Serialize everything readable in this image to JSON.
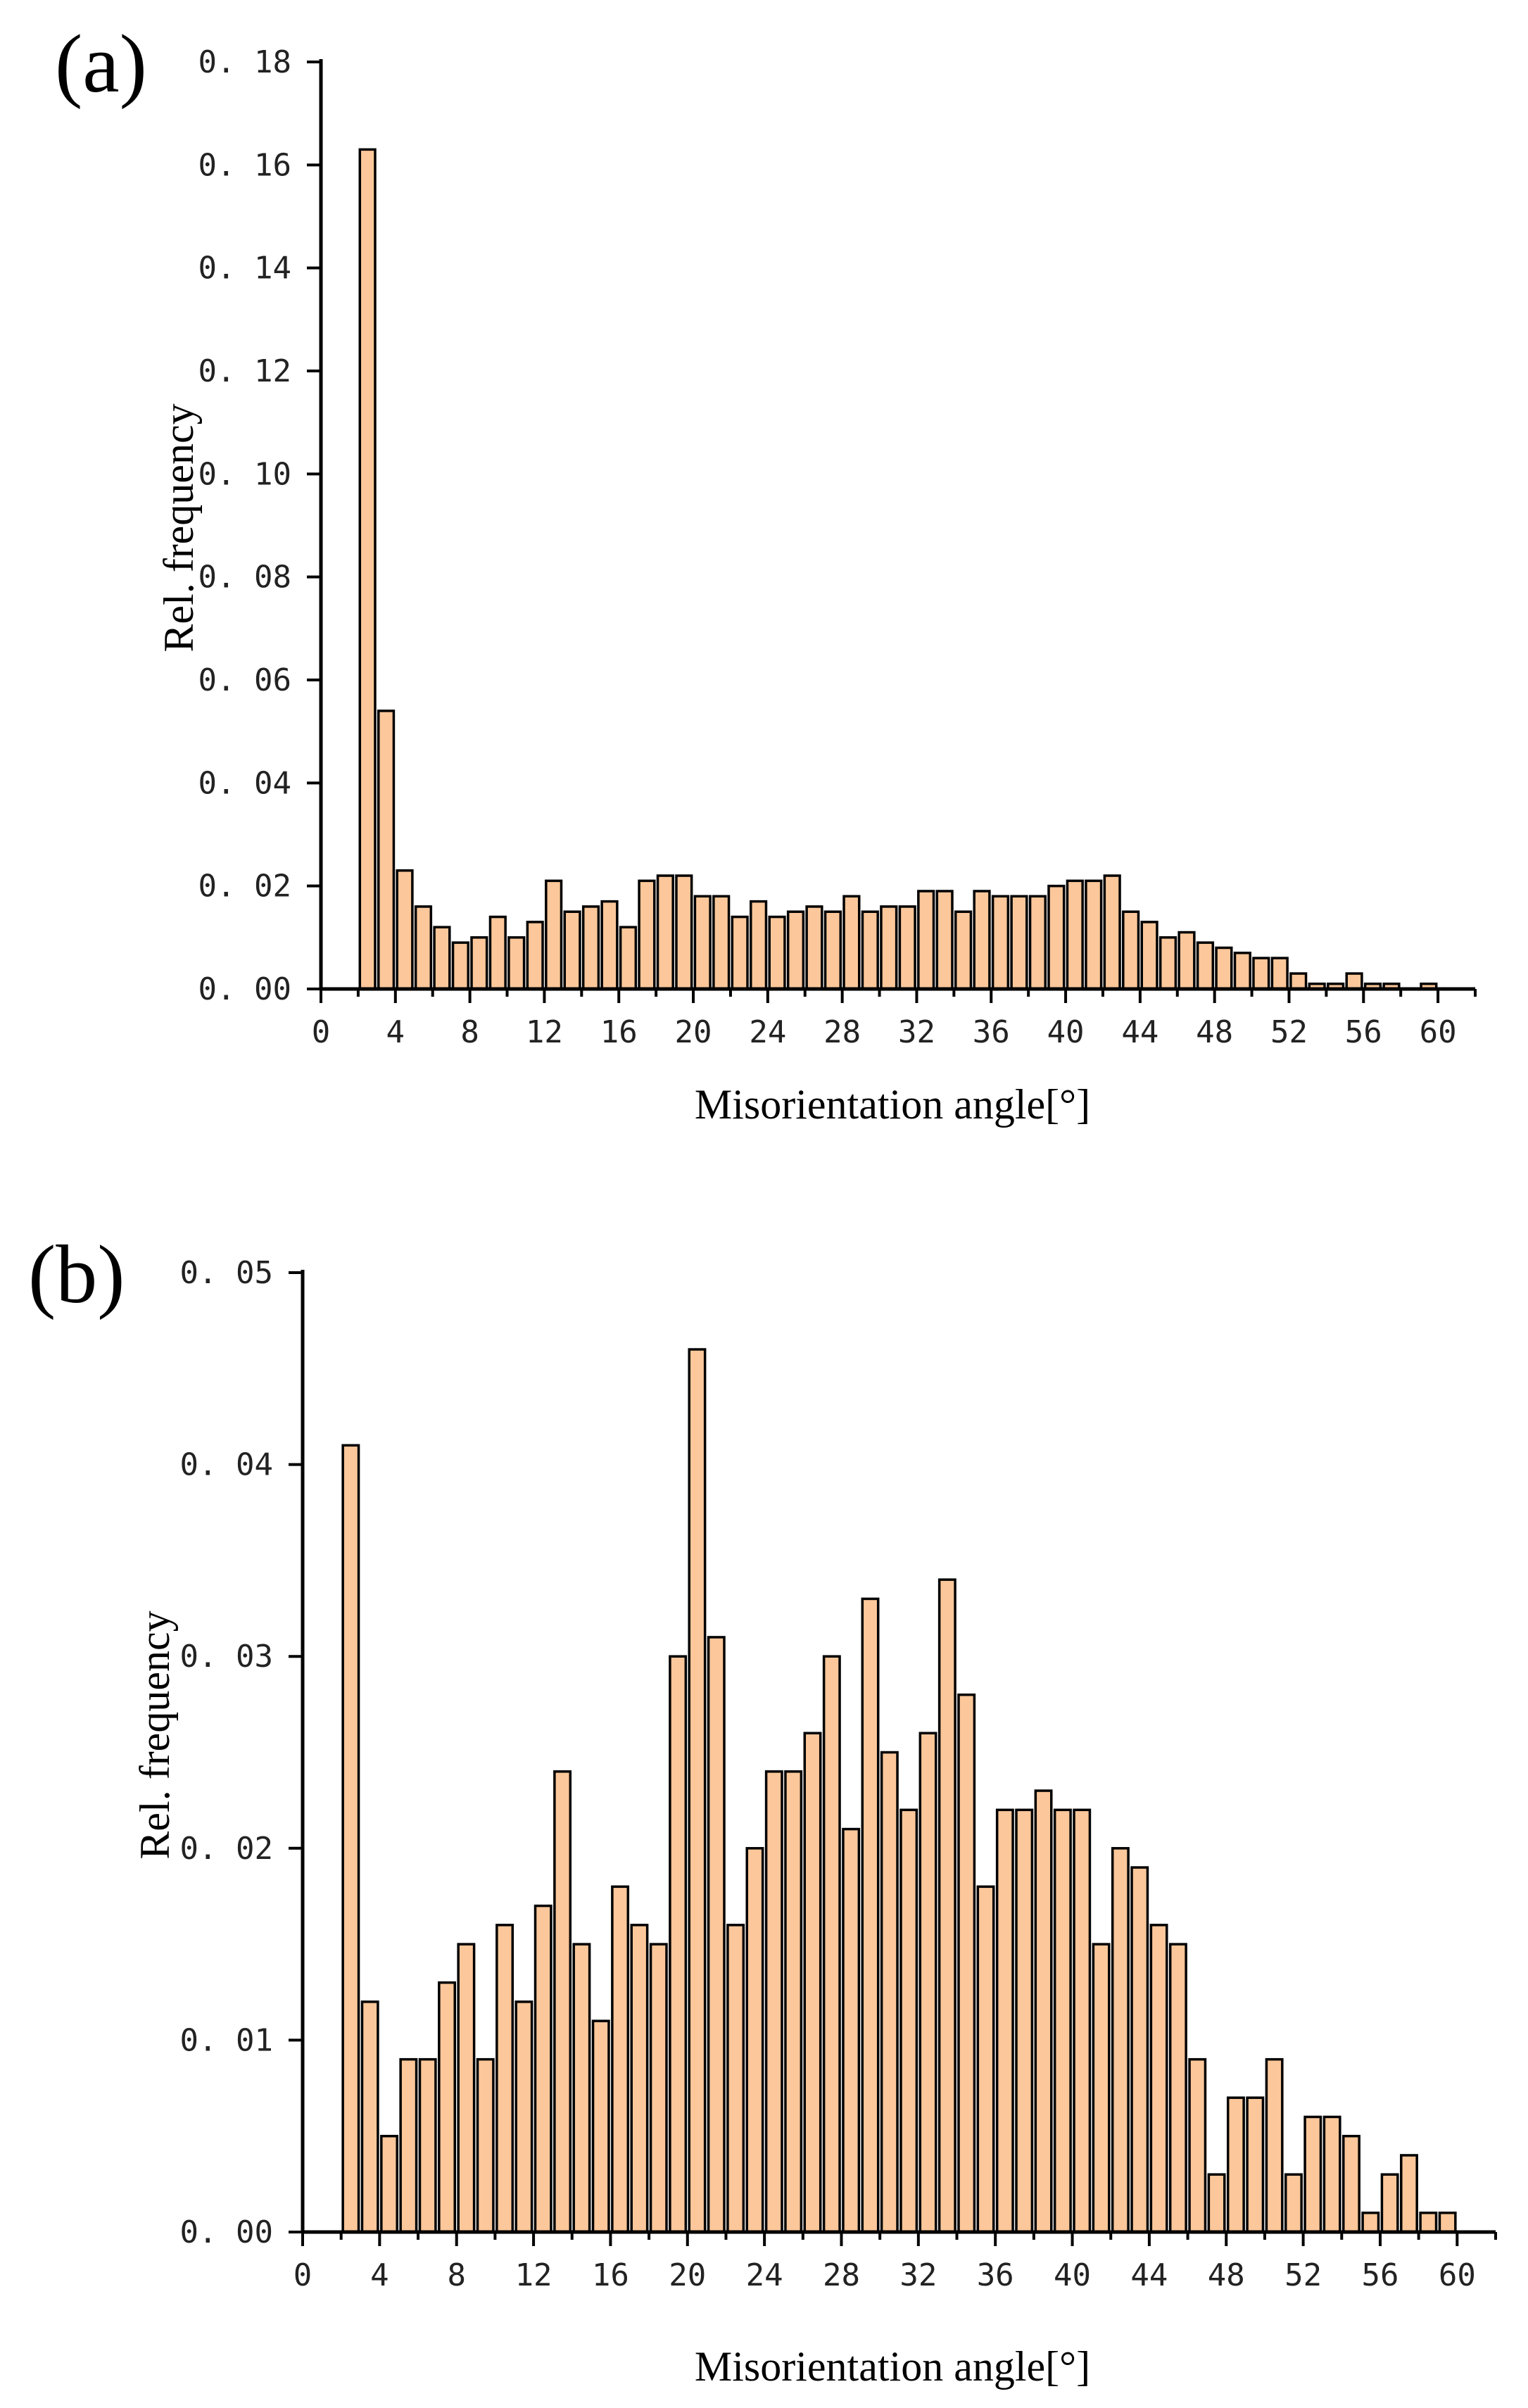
{
  "chart_data": [
    {
      "panel": "(a)",
      "type": "bar",
      "xlabel": "Misorientation angle[°]",
      "ylabel": "Rel. frequency",
      "xlim": [
        0,
        62
      ],
      "ylim": [
        0,
        0.18
      ],
      "xticks": [
        0,
        4,
        8,
        12,
        16,
        20,
        24,
        28,
        32,
        36,
        40,
        44,
        48,
        52,
        56,
        60
      ],
      "yticks": [
        "0.00",
        "0.02",
        "0.04",
        "0.06",
        "0.08",
        "0.10",
        "0.12",
        "0.14",
        "0.16",
        "0.18"
      ],
      "x": [
        2.5,
        3.5,
        4.5,
        5.5,
        6.5,
        7.5,
        8.5,
        9.5,
        10.5,
        11.5,
        12.5,
        13.5,
        14.5,
        15.5,
        16.5,
        17.5,
        18.5,
        19.5,
        20.5,
        21.5,
        22.5,
        23.5,
        24.5,
        25.5,
        26.5,
        27.5,
        28.5,
        29.5,
        30.5,
        31.5,
        32.5,
        33.5,
        34.5,
        35.5,
        36.5,
        37.5,
        38.5,
        39.5,
        40.5,
        41.5,
        42.5,
        43.5,
        44.5,
        45.5,
        46.5,
        47.5,
        48.5,
        49.5,
        50.5,
        51.5,
        52.5,
        53.5,
        54.5,
        55.5,
        56.5,
        57.5,
        58.5,
        59.5
      ],
      "values": [
        0.163,
        0.054,
        0.023,
        0.016,
        0.012,
        0.009,
        0.01,
        0.014,
        0.01,
        0.013,
        0.021,
        0.015,
        0.016,
        0.017,
        0.012,
        0.021,
        0.022,
        0.022,
        0.018,
        0.018,
        0.014,
        0.017,
        0.014,
        0.015,
        0.016,
        0.015,
        0.018,
        0.015,
        0.016,
        0.016,
        0.019,
        0.019,
        0.015,
        0.019,
        0.018,
        0.018,
        0.018,
        0.02,
        0.021,
        0.021,
        0.022,
        0.015,
        0.013,
        0.01,
        0.011,
        0.009,
        0.008,
        0.007,
        0.006,
        0.006,
        0.003,
        0.001,
        0.001,
        0.003,
        0.001,
        0.001,
        0.0,
        0.001
      ]
    },
    {
      "panel": "(b)",
      "type": "bar",
      "xlabel": "Misorientation angle[°]",
      "ylabel": "Rel. frequency",
      "xlim": [
        0,
        62
      ],
      "ylim": [
        0,
        0.05
      ],
      "xticks": [
        0,
        4,
        8,
        12,
        16,
        20,
        24,
        28,
        32,
        36,
        40,
        44,
        48,
        52,
        56,
        60
      ],
      "yticks": [
        "0.00",
        "0.01",
        "0.02",
        "0.03",
        "0.04",
        "0.05"
      ],
      "x": [
        2.5,
        3.5,
        4.5,
        5.5,
        6.5,
        7.5,
        8.5,
        9.5,
        10.5,
        11.5,
        12.5,
        13.5,
        14.5,
        15.5,
        16.5,
        17.5,
        18.5,
        19.5,
        20.5,
        21.5,
        22.5,
        23.5,
        24.5,
        25.5,
        26.5,
        27.5,
        28.5,
        29.5,
        30.5,
        31.5,
        32.5,
        33.5,
        34.5,
        35.5,
        36.5,
        37.5,
        38.5,
        39.5,
        40.5,
        41.5,
        42.5,
        43.5,
        44.5,
        45.5,
        46.5,
        47.5,
        48.5,
        49.5,
        50.5,
        51.5,
        52.5,
        53.5,
        54.5,
        55.5,
        56.5,
        57.5,
        58.5,
        59.5
      ],
      "values": [
        0.041,
        0.012,
        0.005,
        0.009,
        0.009,
        0.013,
        0.015,
        0.009,
        0.016,
        0.012,
        0.017,
        0.024,
        0.015,
        0.011,
        0.018,
        0.016,
        0.015,
        0.03,
        0.046,
        0.031,
        0.016,
        0.02,
        0.024,
        0.024,
        0.026,
        0.03,
        0.021,
        0.033,
        0.025,
        0.022,
        0.026,
        0.034,
        0.028,
        0.018,
        0.022,
        0.022,
        0.023,
        0.022,
        0.022,
        0.015,
        0.02,
        0.019,
        0.016,
        0.015,
        0.009,
        0.003,
        0.007,
        0.007,
        0.009,
        0.003,
        0.006,
        0.006,
        0.005,
        0.001,
        0.003,
        0.004,
        0.001,
        0.001
      ]
    }
  ]
}
